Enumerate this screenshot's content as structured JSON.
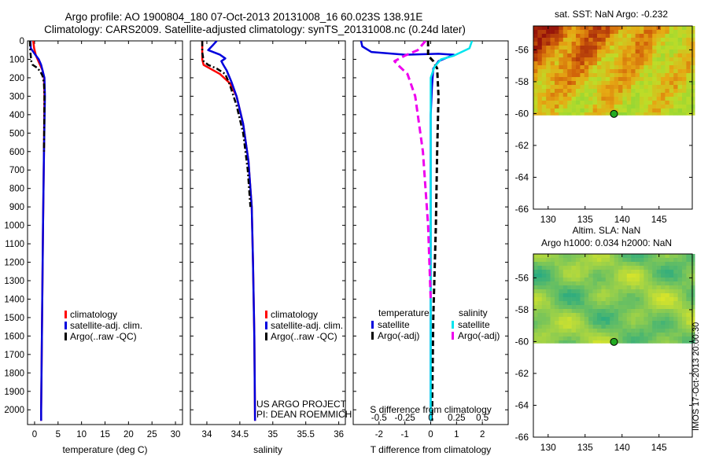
{
  "header": {
    "line1": "Argo profile: AO 1900804_180 07-Oct-2013 20131008_16 60.023S 138.91E",
    "line2": "Climatology: CARS2009. Satellite-adjusted climatology: synTS_20131008.nc (0.24d later)"
  },
  "colors": {
    "climatology": "#ff0000",
    "satellite": "#0000dd",
    "argo": "#000000",
    "cyan": "#00e5ee",
    "magenta": "#ee00ee"
  },
  "depth_ticks": [
    0,
    100,
    200,
    300,
    400,
    500,
    600,
    700,
    800,
    900,
    1000,
    1100,
    1200,
    1300,
    1400,
    1500,
    1600,
    1700,
    1800,
    1900,
    2000
  ],
  "credit": {
    "project": "US ARGO PROJECT",
    "pi": "PI: DEAN ROEMMICH",
    "watermark": "IMOS 17-Oct-2013 20:00:30"
  },
  "chart_data": [
    {
      "id": "temperature",
      "type": "line",
      "xlabel": "temperature (deg C)",
      "ylim": [
        2080,
        0
      ],
      "xlim": [
        -1.5,
        31.5
      ],
      "xticks": [
        0,
        5,
        10,
        15,
        20,
        25,
        30
      ],
      "legend": [
        "climatology",
        "satellite-adj. clim.",
        "Argo(..raw -QC)"
      ],
      "series": [
        {
          "name": "climatology",
          "color_key": "climatology",
          "dash": "",
          "points": [
            [
              -0.3,
              0
            ],
            [
              -0.1,
              40
            ],
            [
              0.3,
              80
            ],
            [
              1.0,
              120
            ],
            [
              1.7,
              160
            ],
            [
              2.0,
              200
            ],
            [
              2.1,
              300
            ],
            [
              2.0,
              600
            ],
            [
              1.8,
              1000
            ],
            [
              1.6,
              1500
            ],
            [
              1.4,
              2000
            ],
            [
              1.4,
              2060
            ]
          ]
        },
        {
          "name": "satellite-adj. clim.",
          "color_key": "satellite",
          "dash": "",
          "points": [
            [
              -0.9,
              0
            ],
            [
              -0.8,
              40
            ],
            [
              0.0,
              70
            ],
            [
              0.9,
              100
            ],
            [
              1.4,
              130
            ],
            [
              1.8,
              170
            ],
            [
              2.1,
              200
            ],
            [
              2.2,
              300
            ],
            [
              2.0,
              600
            ],
            [
              1.8,
              1000
            ],
            [
              1.6,
              1500
            ],
            [
              1.4,
              2000
            ],
            [
              1.4,
              2060
            ]
          ]
        },
        {
          "name": "Argo(..raw -QC)",
          "color_key": "argo",
          "dash": "7,3,2,3",
          "points": [
            [
              -1.0,
              0
            ],
            [
              -0.9,
              60
            ],
            [
              -0.7,
              110
            ],
            [
              -0.4,
              130
            ],
            [
              0.5,
              145
            ],
            [
              1.2,
              165
            ],
            [
              1.7,
              190
            ],
            [
              2.0,
              230
            ],
            [
              2.1,
              300
            ],
            [
              2.0,
              600
            ]
          ]
        }
      ]
    },
    {
      "id": "salinity",
      "type": "line",
      "xlabel": "salinity",
      "ylim": [
        2080,
        0
      ],
      "xlim": [
        33.75,
        36.1
      ],
      "xticks": [
        34,
        34.5,
        35,
        35.5,
        36
      ],
      "legend": [
        "climatology",
        "satellite-adj. clim.",
        "Argo(..raw -QC)"
      ],
      "series": [
        {
          "name": "climatology",
          "color_key": "climatology",
          "dash": "",
          "points": [
            [
              33.93,
              0
            ],
            [
              33.93,
              100
            ],
            [
              33.95,
              130
            ],
            [
              34.05,
              150
            ],
            [
              34.2,
              180
            ],
            [
              34.35,
              230
            ],
            [
              34.45,
              300
            ],
            [
              34.55,
              450
            ],
            [
              34.63,
              650
            ],
            [
              34.68,
              900
            ],
            [
              34.7,
              1200
            ],
            [
              34.72,
              1600
            ],
            [
              34.73,
              2060
            ]
          ]
        },
        {
          "name": "satellite-adj. clim.",
          "color_key": "satellite",
          "dash": "",
          "points": [
            [
              34.15,
              0
            ],
            [
              34.1,
              20
            ],
            [
              34.02,
              50
            ],
            [
              34.2,
              75
            ],
            [
              34.28,
              95
            ],
            [
              34.22,
              110
            ],
            [
              34.25,
              130
            ],
            [
              34.3,
              160
            ],
            [
              34.37,
              220
            ],
            [
              34.45,
              300
            ],
            [
              34.55,
              450
            ],
            [
              34.63,
              650
            ],
            [
              34.68,
              900
            ],
            [
              34.7,
              1200
            ],
            [
              34.72,
              1600
            ],
            [
              34.73,
              2060
            ]
          ]
        },
        {
          "name": "Argo(..raw -QC)",
          "color_key": "argo",
          "dash": "7,3,2,3",
          "points": [
            [
              33.93,
              0
            ],
            [
              33.93,
              60
            ],
            [
              33.95,
              110
            ],
            [
              34.02,
              130
            ],
            [
              34.15,
              150
            ],
            [
              34.28,
              180
            ],
            [
              34.35,
              240
            ],
            [
              34.45,
              350
            ],
            [
              34.55,
              500
            ],
            [
              34.62,
              700
            ],
            [
              34.66,
              900
            ]
          ]
        }
      ]
    },
    {
      "id": "difference",
      "type": "line",
      "xlabel": "T difference from climatology",
      "xlabel_top": "S difference from climatology",
      "ylim": [
        2080,
        0
      ],
      "xlim": [
        -3.0,
        3.0
      ],
      "xticks": [
        -2,
        -1,
        0,
        1,
        2
      ],
      "s_ticks": [
        -0.5,
        -0.25,
        0,
        0.25,
        0.5
      ],
      "legend_left_title": "temperature",
      "legend_right_title": "salinity",
      "legend_left": [
        "satellite",
        "Argo(-adj)"
      ],
      "legend_right": [
        "satellite",
        "Argo(-adj)"
      ],
      "series": [
        {
          "name": "temperature satellite",
          "color_key": "satellite",
          "dash": "",
          "width": 2.5,
          "points": [
            [
              -2.7,
              0
            ],
            [
              -2.65,
              30
            ],
            [
              -2.3,
              60
            ],
            [
              -1.0,
              75
            ],
            [
              0.3,
              70
            ],
            [
              0.9,
              75
            ],
            [
              0.3,
              110
            ],
            [
              0.1,
              150
            ],
            [
              0.05,
              250
            ],
            [
              0.0,
              400
            ],
            [
              0.0,
              1000
            ],
            [
              0.0,
              2060
            ]
          ]
        },
        {
          "name": "temperature Argo(-adj)",
          "color_key": "argo",
          "dash": "7,4",
          "width": 3,
          "points": [
            [
              -0.1,
              0
            ],
            [
              -0.1,
              80
            ],
            [
              0.1,
              110
            ],
            [
              0.25,
              150
            ],
            [
              0.3,
              300
            ],
            [
              0.25,
              600
            ],
            [
              0.2,
              1000
            ],
            [
              0.1,
              1500
            ],
            [
              0.05,
              2060
            ]
          ]
        },
        {
          "name": "salinity satellite",
          "color_key": "cyan",
          "dash": "",
          "width": 2.5,
          "points": [
            [
              1.6,
              0
            ],
            [
              1.5,
              40
            ],
            [
              0.9,
              80
            ],
            [
              0.4,
              100
            ],
            [
              0.15,
              140
            ],
            [
              0.0,
              200
            ],
            [
              0.0,
              2060
            ]
          ]
        },
        {
          "name": "salinity Argo(-adj)",
          "color_key": "magenta",
          "dash": "9,5",
          "width": 3,
          "points": [
            [
              -0.2,
              0
            ],
            [
              -0.5,
              50
            ],
            [
              -1.0,
              80
            ],
            [
              -1.4,
              110
            ],
            [
              -1.2,
              140
            ],
            [
              -0.9,
              180
            ],
            [
              -0.6,
              300
            ],
            [
              -0.3,
              600
            ],
            [
              -0.1,
              1000
            ],
            [
              0.0,
              1400
            ]
          ]
        }
      ]
    },
    {
      "id": "sst_map",
      "type": "heatmap",
      "title": "sat. SST: NaN Argo: -0.232",
      "xlim": [
        128,
        149.5
      ],
      "ylim": [
        -66,
        -54.5
      ],
      "xticks": [
        130,
        135,
        140,
        145
      ],
      "yticks": [
        -56,
        -58,
        -60,
        -62,
        -64,
        -66
      ],
      "data_lat_min": -60.1,
      "marker": [
        138.91,
        -60.02
      ]
    },
    {
      "id": "sla_map",
      "type": "heatmap",
      "title": "Altim. SLA: NaN",
      "subtitle": "Argo h1000: 0.034 h2000: NaN",
      "xlim": [
        128,
        149.5
      ],
      "ylim": [
        -66,
        -54.5
      ],
      "xticks": [
        130,
        135,
        140,
        145
      ],
      "yticks": [
        -56,
        -58,
        -60,
        -62,
        -64,
        -66
      ],
      "data_lat_min": -60.1,
      "marker": [
        138.91,
        -60.02
      ]
    }
  ]
}
